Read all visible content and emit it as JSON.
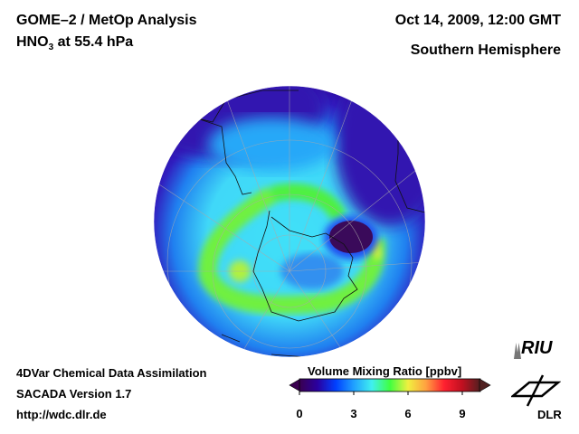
{
  "header": {
    "title_line1": "GOME–2 / MetOp Analysis",
    "title_species": "HNO",
    "title_species_sub": "3",
    "title_level": " at 55.4 hPa",
    "date": "Oct 14, 2009, 12:00 GMT",
    "region": "Southern Hemisphere"
  },
  "footer": {
    "line1": "4DVar Chemical Data Assimilation",
    "line2": "SACADA Version 1.7",
    "line3": "http://wdc.dlr.de"
  },
  "colorbar": {
    "title": "Volume Mixing Ratio [ppbv]",
    "min": 0,
    "max": 10,
    "ticks": [
      "0",
      "3",
      "6",
      "9"
    ],
    "colors": [
      "#3a0050",
      "#2a00a0",
      "#0040ff",
      "#20a0ff",
      "#40f0f0",
      "#40ff40",
      "#f0f040",
      "#ffa040",
      "#ff2030",
      "#c01020",
      "#502020"
    ]
  },
  "logos": {
    "riu": "RIU",
    "dlr": "DLR"
  }
}
